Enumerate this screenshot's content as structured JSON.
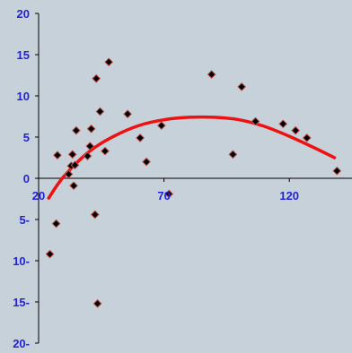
{
  "chart_data": {
    "type": "scatter",
    "title": "",
    "xlabel": "",
    "ylabel": "",
    "xlim": [
      20,
      145
    ],
    "ylim": [
      -20,
      20
    ],
    "x_ticks": [
      20,
      70,
      120
    ],
    "x_tick_labels": [
      "20",
      "70",
      "120"
    ],
    "y_ticks": [
      20,
      15,
      10,
      5,
      0,
      -5,
      -10,
      -15,
      -20
    ],
    "y_tick_labels": [
      "20",
      "15",
      "10",
      "5",
      "0",
      "5-",
      "10-",
      "15-",
      "20-"
    ],
    "grid": false,
    "legend": "none",
    "series": [
      {
        "type": "scatter",
        "marker": "diamond",
        "color": "#000000",
        "edge_color": "#c0504d",
        "points": [
          [
            24.5,
            -9.2
          ],
          [
            27,
            -5.5
          ],
          [
            27.5,
            2.8
          ],
          [
            32,
            0.5
          ],
          [
            33,
            1.5
          ],
          [
            33.5,
            2.9
          ],
          [
            34,
            -0.9
          ],
          [
            34.5,
            1.6
          ],
          [
            35,
            5.8
          ],
          [
            39.5,
            2.7
          ],
          [
            40.5,
            3.9
          ],
          [
            41,
            6.0
          ],
          [
            42.5,
            -4.4
          ],
          [
            43,
            12.1
          ],
          [
            43.5,
            -15.2
          ],
          [
            44.5,
            8.1
          ],
          [
            46.5,
            3.3
          ],
          [
            48,
            14.1
          ],
          [
            55.5,
            7.8
          ],
          [
            60.5,
            4.9
          ],
          [
            63,
            2.0
          ],
          [
            69,
            6.4
          ],
          [
            72,
            -1.9
          ],
          [
            89,
            12.6
          ],
          [
            97.5,
            2.9
          ],
          [
            101,
            11.1
          ],
          [
            106.5,
            6.9
          ],
          [
            117.5,
            6.6
          ],
          [
            122.5,
            5.8
          ],
          [
            127,
            4.9
          ],
          [
            139,
            0.9
          ]
        ]
      },
      {
        "type": "line",
        "color": "#ee1111",
        "x": [
          24,
          30,
          40,
          50,
          60,
          70,
          80,
          90,
          100,
          110,
          120,
          130,
          138
        ],
        "y": [
          -2.4,
          0.2,
          3.2,
          5.1,
          6.4,
          7.1,
          7.4,
          7.4,
          7.1,
          6.3,
          5.1,
          3.7,
          2.5
        ]
      }
    ]
  },
  "colors": {
    "background": "#c7d1da",
    "axis": "#000000",
    "tick_label": "#2323d5",
    "trend_line": "#ee1111"
  }
}
